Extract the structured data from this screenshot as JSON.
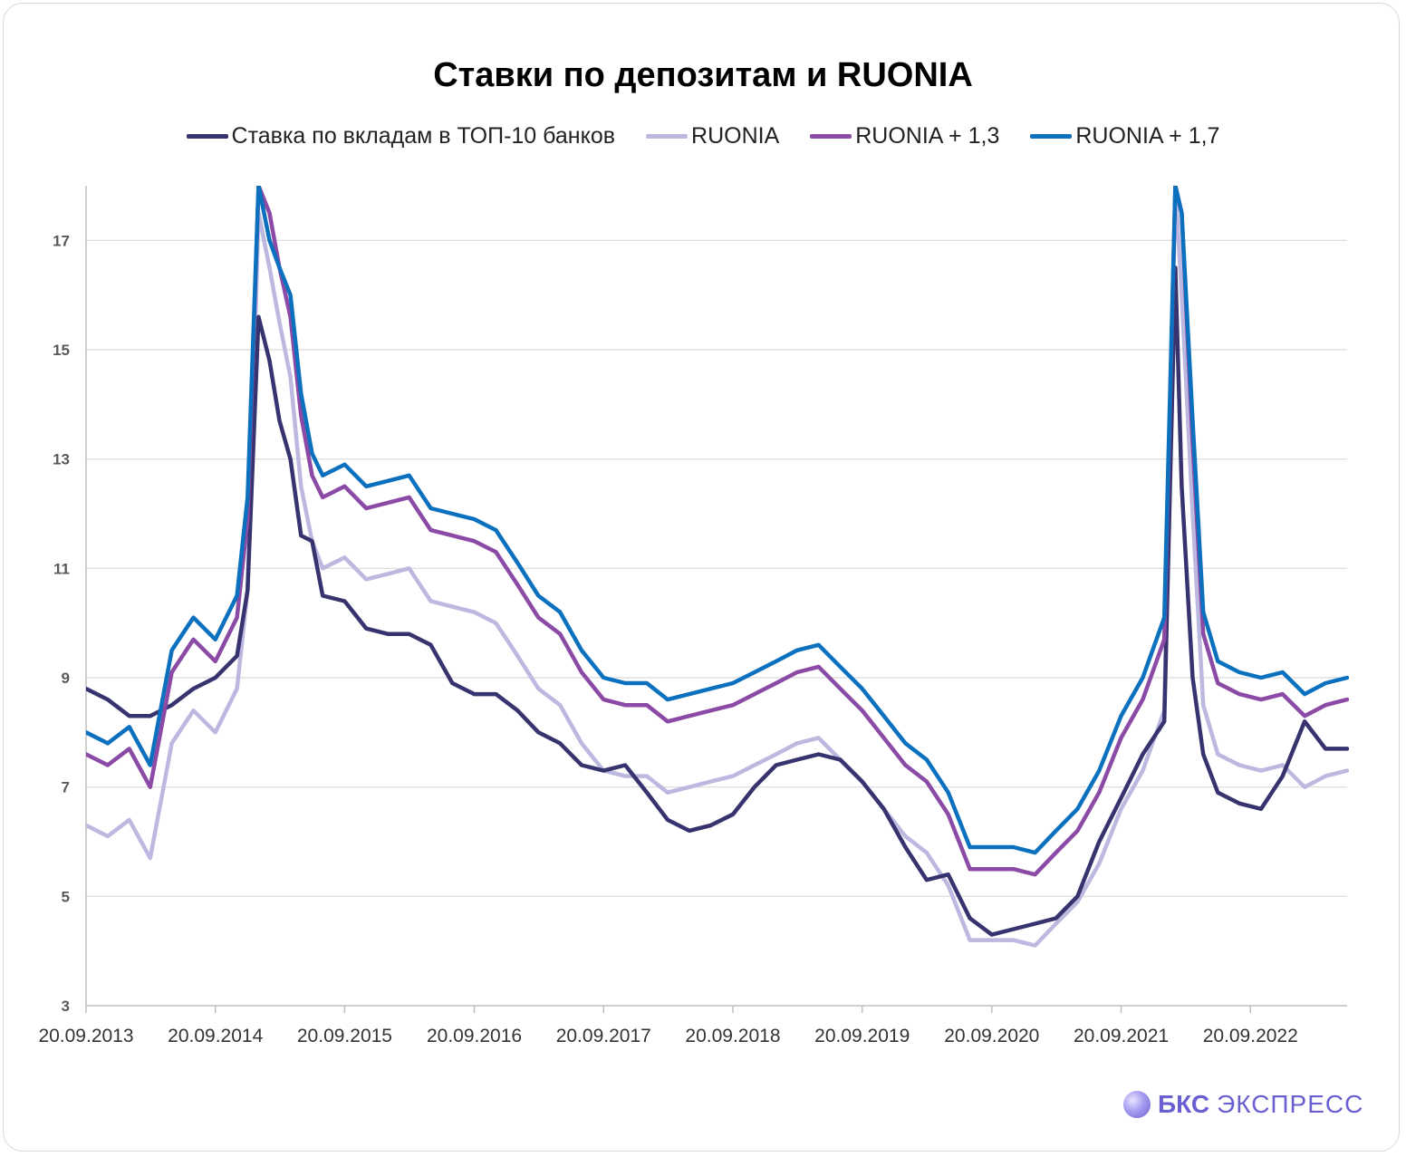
{
  "title": "Ставки по депозитам и RUONIA",
  "legend": [
    {
      "label": "Ставка по вкладам в ТОП-10 банков",
      "color": "#36336e"
    },
    {
      "label": "RUONIA",
      "color": "#bcb8e0"
    },
    {
      "label": "RUONIA + 1,3",
      "color": "#8b4aa5"
    },
    {
      "label": "RUONIA + 1,7",
      "color": "#0b70be"
    }
  ],
  "brand": {
    "bold": "БКС",
    "light": "ЭКСПРЕСС"
  },
  "chart_data": {
    "type": "line",
    "title": "Ставки по депозитам и RUONIA",
    "xlabel": "",
    "ylabel": "",
    "ylim": [
      3,
      18
    ],
    "xlim": [
      "2013-09-20",
      "2023-06-20"
    ],
    "grid": "horizontal",
    "legend_position": "top",
    "y_ticks": [
      3,
      5,
      7,
      9,
      11,
      13,
      15,
      17
    ],
    "x_tick_labels": [
      "20.09.2013",
      "20.09.2014",
      "20.09.2015",
      "20.09.2016",
      "20.09.2017",
      "20.09.2018",
      "20.09.2019",
      "20.09.2020",
      "20.09.2021",
      "20.09.2022"
    ],
    "x_ticks": [
      "2013-09-20",
      "2014-09-20",
      "2015-09-20",
      "2016-09-20",
      "2017-09-20",
      "2018-09-20",
      "2019-09-20",
      "2020-09-20",
      "2021-09-20",
      "2022-09-20"
    ],
    "x": [
      "2013-09-20",
      "2013-11-20",
      "2014-01-20",
      "2014-03-20",
      "2014-05-20",
      "2014-07-20",
      "2014-09-20",
      "2014-11-20",
      "2014-12-20",
      "2015-01-20",
      "2015-02-20",
      "2015-03-20",
      "2015-04-20",
      "2015-05-20",
      "2015-06-20",
      "2015-07-20",
      "2015-09-20",
      "2015-11-20",
      "2016-01-20",
      "2016-03-20",
      "2016-05-20",
      "2016-07-20",
      "2016-09-20",
      "2016-11-20",
      "2017-01-20",
      "2017-03-20",
      "2017-05-20",
      "2017-07-20",
      "2017-09-20",
      "2017-11-20",
      "2018-01-20",
      "2018-03-20",
      "2018-05-20",
      "2018-07-20",
      "2018-09-20",
      "2018-11-20",
      "2019-01-20",
      "2019-03-20",
      "2019-05-20",
      "2019-07-20",
      "2019-09-20",
      "2019-11-20",
      "2020-01-20",
      "2020-03-20",
      "2020-05-20",
      "2020-07-20",
      "2020-09-20",
      "2020-11-20",
      "2021-01-20",
      "2021-03-20",
      "2021-05-20",
      "2021-07-20",
      "2021-09-20",
      "2021-11-20",
      "2022-01-20",
      "2022-02-20",
      "2022-03-10",
      "2022-04-10",
      "2022-05-10",
      "2022-06-20",
      "2022-08-20",
      "2022-10-20",
      "2022-12-20",
      "2023-02-20",
      "2023-04-20",
      "2023-06-20"
    ],
    "series": [
      {
        "name": "Ставка по вкладам в ТОП-10 банков",
        "color": "#36336e",
        "values": [
          8.8,
          8.6,
          8.3,
          8.3,
          8.5,
          8.8,
          9.0,
          9.4,
          10.6,
          15.6,
          14.8,
          13.7,
          13.0,
          11.6,
          11.5,
          10.5,
          10.4,
          9.9,
          9.8,
          9.8,
          9.6,
          8.9,
          8.7,
          8.7,
          8.4,
          8.0,
          7.8,
          7.4,
          7.3,
          7.4,
          6.9,
          6.4,
          6.2,
          6.3,
          6.5,
          7.0,
          7.4,
          7.5,
          7.6,
          7.5,
          7.1,
          6.6,
          5.9,
          5.3,
          5.4,
          4.6,
          4.3,
          4.4,
          4.5,
          4.6,
          5.0,
          6.0,
          6.8,
          7.6,
          8.2,
          16.5,
          12.5,
          9.0,
          7.6,
          6.9,
          6.7,
          6.6,
          7.2,
          8.2,
          7.7,
          7.7
        ]
      },
      {
        "name": "RUONIA",
        "color": "#bcb8e0",
        "values": [
          6.3,
          6.1,
          6.4,
          5.7,
          7.8,
          8.4,
          8.0,
          8.8,
          10.6,
          17.5,
          16.5,
          15.5,
          14.5,
          12.5,
          11.5,
          11.0,
          11.2,
          10.8,
          10.9,
          11.0,
          10.4,
          10.3,
          10.2,
          10.0,
          9.4,
          8.8,
          8.5,
          7.8,
          7.3,
          7.2,
          7.2,
          6.9,
          7.0,
          7.1,
          7.2,
          7.4,
          7.6,
          7.8,
          7.9,
          7.5,
          7.1,
          6.6,
          6.1,
          5.8,
          5.2,
          4.2,
          4.2,
          4.2,
          4.1,
          4.5,
          4.9,
          5.6,
          6.6,
          7.3,
          8.4,
          18.0,
          16.0,
          12.0,
          8.5,
          7.6,
          7.4,
          7.3,
          7.4,
          7.0,
          7.2,
          7.3
        ]
      },
      {
        "name": "RUONIA + 1,3",
        "color": "#8b4aa5",
        "values": [
          7.6,
          7.4,
          7.7,
          7.0,
          9.1,
          9.7,
          9.3,
          10.1,
          11.9,
          18.0,
          17.5,
          16.5,
          15.6,
          13.8,
          12.7,
          12.3,
          12.5,
          12.1,
          12.2,
          12.3,
          11.7,
          11.6,
          11.5,
          11.3,
          10.7,
          10.1,
          9.8,
          9.1,
          8.6,
          8.5,
          8.5,
          8.2,
          8.3,
          8.4,
          8.5,
          8.7,
          8.9,
          9.1,
          9.2,
          8.8,
          8.4,
          7.9,
          7.4,
          7.1,
          6.5,
          5.5,
          5.5,
          5.5,
          5.4,
          5.8,
          6.2,
          6.9,
          7.9,
          8.6,
          9.7,
          18.0,
          17.5,
          13.3,
          9.8,
          8.9,
          8.7,
          8.6,
          8.7,
          8.3,
          8.5,
          8.6
        ]
      },
      {
        "name": "RUONIA + 1,7",
        "color": "#0b70be",
        "values": [
          8.0,
          7.8,
          8.1,
          7.4,
          9.5,
          10.1,
          9.7,
          10.5,
          12.3,
          18.0,
          17.0,
          16.5,
          16.0,
          14.2,
          13.1,
          12.7,
          12.9,
          12.5,
          12.6,
          12.7,
          12.1,
          12.0,
          11.9,
          11.7,
          11.1,
          10.5,
          10.2,
          9.5,
          9.0,
          8.9,
          8.9,
          8.6,
          8.7,
          8.8,
          8.9,
          9.1,
          9.3,
          9.5,
          9.6,
          9.2,
          8.8,
          8.3,
          7.8,
          7.5,
          6.9,
          5.9,
          5.9,
          5.9,
          5.8,
          6.2,
          6.6,
          7.3,
          8.3,
          9.0,
          10.1,
          18.0,
          17.5,
          13.7,
          10.2,
          9.3,
          9.1,
          9.0,
          9.1,
          8.7,
          8.9,
          9.0
        ]
      }
    ]
  }
}
